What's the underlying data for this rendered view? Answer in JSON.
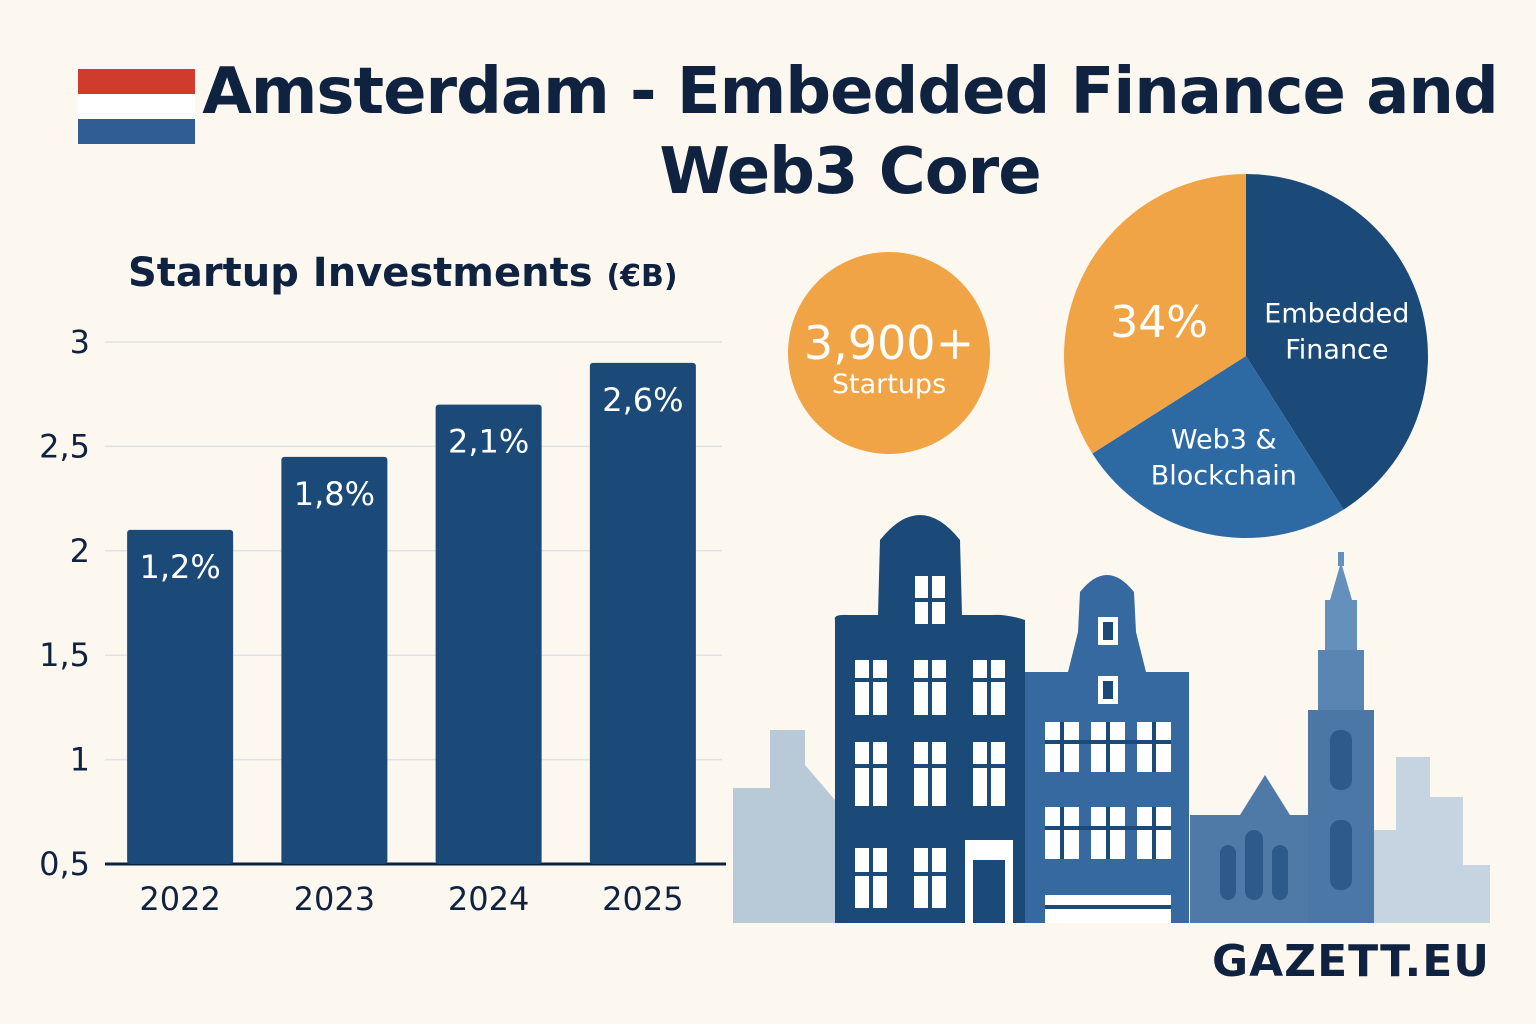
{
  "header": {
    "title": "Amsterdam - Embedded Finance and Web3 Core"
  },
  "brand": "GAZETT.EU",
  "colors": {
    "navy": "#1c4a78",
    "dark_text": "#0f2240",
    "orange": "#f0a445",
    "mid_blue": "#2d6aa3",
    "flag_red": "#cf3b2c",
    "flag_blue": "#2f5d94",
    "background": "#fdf8ef"
  },
  "icons": [
    "netherlands-flag-icon",
    "amsterdam-skyline-illustration"
  ],
  "stats": {
    "startups_value": "3,900+",
    "startups_label": "Startups"
  },
  "chart_data": [
    {
      "type": "bar",
      "title": "Startup Investments",
      "title_unit": "(€B)",
      "categories": [
        "2022",
        "2023",
        "2024",
        "2025"
      ],
      "values": [
        2.1,
        2.45,
        2.7,
        2.9
      ],
      "data_labels": [
        "1,2%",
        "1,8%",
        "2,1%",
        "2,6%"
      ],
      "yticks": [
        0.5,
        1,
        1.5,
        2,
        2.5,
        3
      ],
      "ytick_labels": [
        "0,5",
        "1",
        "1,5",
        "2",
        "2,5",
        "3"
      ],
      "ylim": [
        0.5,
        3
      ],
      "grid": true
    },
    {
      "type": "pie",
      "slices": [
        {
          "label": "Embedded Finance",
          "value": 41,
          "color": "#1c4a78"
        },
        {
          "label": "Web3 & Blockchain",
          "value": 25,
          "color": "#2d6aa3"
        },
        {
          "label": "",
          "value": 34,
          "color": "#f0a445"
        }
      ],
      "annotation": "34%"
    }
  ]
}
